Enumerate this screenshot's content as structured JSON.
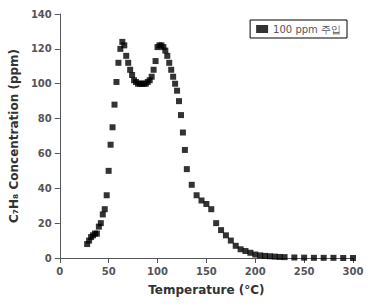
{
  "chart_data": {
    "type": "scatter",
    "xlabel": "Temperature (°C)",
    "ylabel": "C₇H₈ Concentration (ppm)",
    "x": [
      28,
      30,
      32,
      34,
      36,
      38,
      40,
      42,
      44,
      46,
      48,
      50,
      52,
      54,
      56,
      58,
      60,
      62,
      64,
      66,
      68,
      70,
      72,
      74,
      76,
      78,
      80,
      82,
      84,
      86,
      88,
      90,
      92,
      94,
      96,
      98,
      100,
      102,
      104,
      106,
      108,
      110,
      112,
      114,
      116,
      118,
      120,
      122,
      124,
      126,
      128,
      130,
      135,
      140,
      145,
      150,
      155,
      160,
      165,
      170,
      175,
      180,
      185,
      190,
      195,
      200,
      205,
      210,
      215,
      220,
      225,
      230,
      240,
      250,
      260,
      270,
      280,
      290,
      300
    ],
    "series": [
      {
        "name": "100 ppm 주입",
        "color": "black",
        "marker": "square",
        "values": [
          8,
          10,
          12,
          13,
          14,
          14,
          18,
          20,
          25,
          28,
          36,
          50,
          65,
          75,
          88,
          101,
          112,
          120,
          124,
          122,
          116,
          112,
          108,
          105,
          102,
          101,
          100,
          100,
          100,
          100,
          100,
          101,
          102,
          104,
          108,
          113,
          121,
          122,
          122,
          121,
          119,
          116,
          112,
          108,
          104,
          100,
          96,
          90,
          82,
          72,
          62,
          51,
          42,
          36,
          33,
          31,
          28,
          20,
          16,
          13,
          10,
          7,
          5,
          4,
          3,
          2,
          1.5,
          1.2,
          1.0,
          0.8,
          0.6,
          0.5,
          0.3,
          0.2,
          0.1,
          0.1,
          0.1,
          0.0,
          0.0
        ]
      }
    ],
    "xlim": [
      0,
      300
    ],
    "ylim": [
      0,
      140
    ],
    "xticks": [
      0,
      50,
      100,
      150,
      200,
      250,
      300
    ],
    "yticks": [
      0,
      20,
      40,
      60,
      80,
      100,
      120,
      140
    ],
    "legend": "upper right",
    "grid": false
  }
}
